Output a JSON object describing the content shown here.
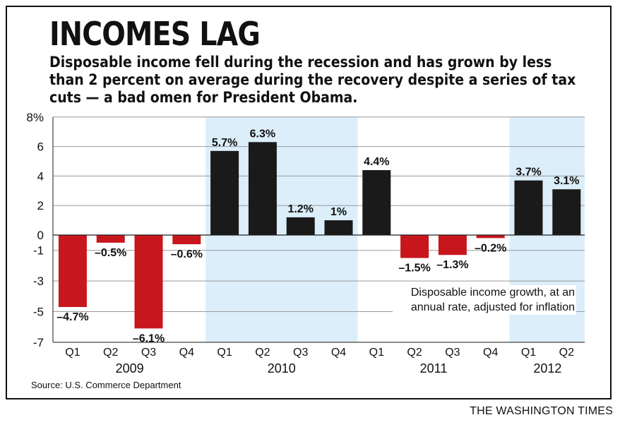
{
  "header": {
    "title": "INCOMES LAG",
    "subtitle": "Disposable income fell during the recession and has grown by less than 2 percent on average during the recovery despite a series of tax cuts — a bad omen for President Obama."
  },
  "chart_data": {
    "type": "bar",
    "categories": [
      "Q1",
      "Q2",
      "Q3",
      "Q4",
      "Q1",
      "Q2",
      "Q3",
      "Q4",
      "Q1",
      "Q2",
      "Q3",
      "Q4",
      "Q1",
      "Q2"
    ],
    "years": [
      {
        "label": "2009",
        "start": 0,
        "end": 3
      },
      {
        "label": "2010",
        "start": 4,
        "end": 7
      },
      {
        "label": "2011",
        "start": 8,
        "end": 11
      },
      {
        "label": "2012",
        "start": 12,
        "end": 13
      }
    ],
    "values": [
      -4.7,
      -0.5,
      -6.1,
      -0.6,
      5.7,
      6.3,
      1.2,
      1.0,
      4.4,
      -1.5,
      -1.3,
      -0.2,
      3.7,
      3.1
    ],
    "data_labels": [
      "–4.7%",
      "–0.5%",
      "–6.1%",
      "–0.6%",
      "5.7%",
      "6.3%",
      "1.2%",
      "1%",
      "4.4%",
      "–1.5%",
      "–1.3%",
      "–0.2%",
      "3.7%",
      "3.1%"
    ],
    "y_ticks": [
      {
        "value": 8,
        "label": "8%"
      },
      {
        "value": 6,
        "label": "6"
      },
      {
        "value": 4,
        "label": "4"
      },
      {
        "value": 2,
        "label": "2"
      },
      {
        "value": 0,
        "label": "0"
      },
      {
        "value": -1,
        "label": "-1"
      },
      {
        "value": -3,
        "label": "-3"
      },
      {
        "value": -5,
        "label": "-5"
      },
      {
        "value": -7,
        "label": "-7"
      }
    ],
    "ylim": [
      -7,
      8
    ],
    "shaded_years": [
      "2010",
      "2012"
    ],
    "grid": true,
    "colors": {
      "negative": "#c8161d",
      "positive": "#1a1a1a",
      "shade": "#dbeef9",
      "grid": "#999999"
    },
    "annotation": [
      "Disposable income growth, at an",
      "annual rate, adjusted for inflation"
    ]
  },
  "footer": {
    "source": "Source: U.S. Commerce Department",
    "brand": "THE WASHINGTON TIMES"
  }
}
